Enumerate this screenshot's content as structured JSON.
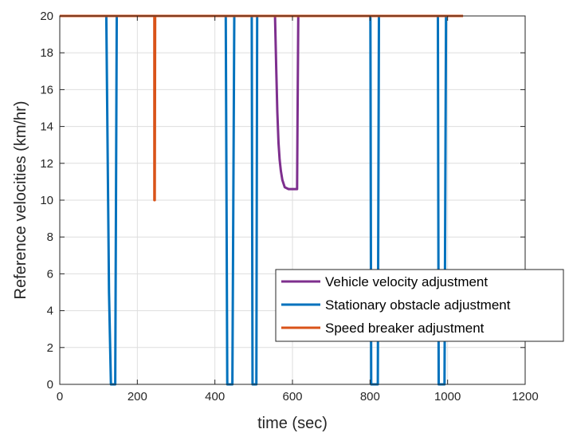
{
  "chart_data": {
    "type": "line",
    "title": "",
    "xlabel": "time (sec)",
    "ylabel": "Reference velocities (km/hr)",
    "xlim": [
      0,
      1200
    ],
    "ylim": [
      0,
      20
    ],
    "xticks": [
      0,
      200,
      400,
      600,
      800,
      1000,
      1200
    ],
    "yticks": [
      0,
      2,
      4,
      6,
      8,
      10,
      12,
      14,
      16,
      18,
      20
    ],
    "xtick_labels": [
      "0",
      "200",
      "400",
      "600",
      "800",
      "1000",
      "1200"
    ],
    "ytick_labels": [
      "0",
      "2",
      "4",
      "6",
      "8",
      "10",
      "12",
      "14",
      "16",
      "18",
      "20"
    ],
    "grid": true,
    "legend_position": "lower-right",
    "legend": [
      "Vehicle velocity adjustment",
      "Stationary obstacle adjustment",
      "Speed breaker adjustment"
    ],
    "series": [
      {
        "name": "Vehicle velocity adjustment",
        "color": "#7E2F8E",
        "x": [
          555,
          558,
          561,
          564,
          567,
          570,
          574,
          580,
          590,
          600,
          612,
          613,
          615
        ],
        "y": [
          20,
          17.2,
          14.8,
          13.1,
          12.2,
          11.6,
          11.1,
          10.7,
          10.6,
          10.6,
          10.6,
          14,
          20
        ]
      },
      {
        "name": "Stationary obstacle adjustment",
        "color": "#0072BD",
        "x": [
          0,
          120,
          127,
          132,
          134,
          140,
          143,
          147,
          428,
          432,
          434,
          443,
          445,
          450,
          495,
          497,
          499,
          505,
          507,
          509,
          801,
          803,
          805,
          818,
          820,
          823,
          975,
          977,
          979,
          990,
          992,
          996,
          1000
        ],
        "y": [
          20,
          20,
          5,
          0,
          0,
          0,
          0,
          20,
          20,
          0,
          0,
          0,
          0,
          20,
          20,
          0,
          0,
          0,
          0,
          20,
          20,
          0,
          0,
          0,
          0,
          20,
          20,
          0,
          0,
          0,
          0,
          20,
          20
        ]
      },
      {
        "name": "Speed breaker adjustment",
        "color": "#D95319",
        "x": [
          0,
          244,
          244,
          245,
          246,
          1040
        ],
        "y": [
          20,
          20,
          10,
          10,
          20,
          20
        ]
      }
    ]
  }
}
